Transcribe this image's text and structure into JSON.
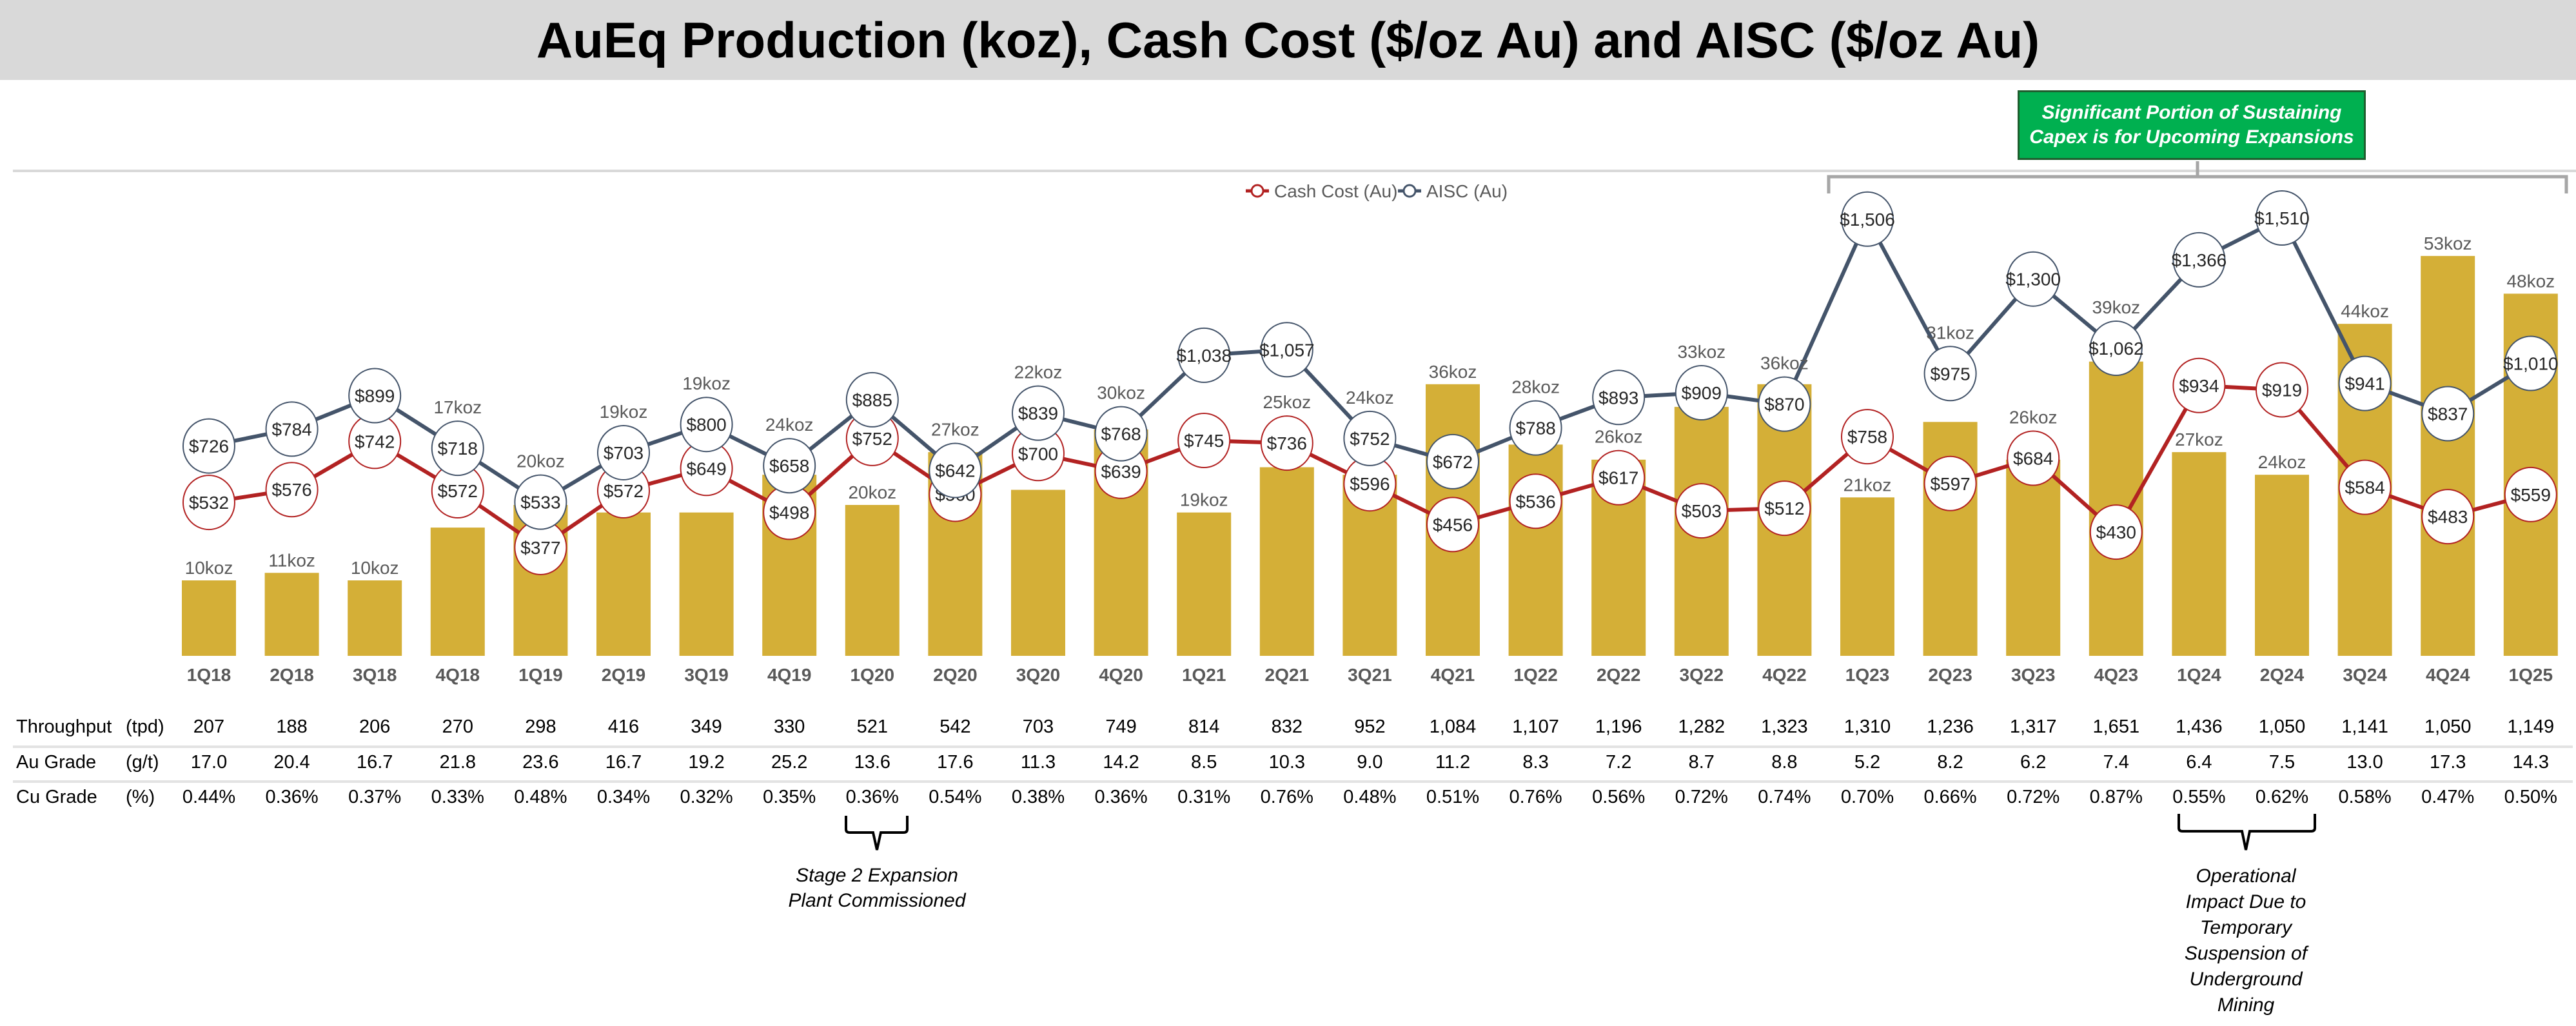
{
  "title": "AuEq Production (koz), Cash Cost ($/oz Au) and AISC ($/oz Au)",
  "callout": {
    "line1": "Significant Portion of Sustaining",
    "line2": "Capex is for Upcoming Expansions"
  },
  "annotations": {
    "stage2": [
      "Stage 2 Expansion",
      "Plant Commissioned"
    ],
    "operational": [
      "Operational",
      "Impact Due to",
      "Temporary",
      "Suspension of",
      "Underground",
      "Mining"
    ]
  },
  "colors": {
    "bar": "#d4af37",
    "cash_cost": "#b22222",
    "aisc": "#44546a",
    "callout": "#00b050",
    "title_bg": "#d9d9d9"
  },
  "chart_data": {
    "type": "bar+line",
    "title": "AuEq Production (koz), Cash Cost ($/oz Au) and AISC ($/oz Au)",
    "legend": {
      "position": "top-center",
      "entries": [
        "Cash Cost (Au)",
        "AISC (Au)"
      ]
    },
    "grid": false,
    "categories": [
      "1Q18",
      "2Q18",
      "3Q18",
      "4Q18",
      "1Q19",
      "2Q19",
      "3Q19",
      "4Q19",
      "1Q20",
      "2Q20",
      "3Q20",
      "4Q20",
      "1Q21",
      "2Q21",
      "3Q21",
      "4Q21",
      "1Q22",
      "2Q22",
      "3Q22",
      "4Q22",
      "1Q23",
      "2Q23",
      "3Q23",
      "4Q23",
      "1Q24",
      "2Q24",
      "3Q24",
      "4Q24",
      "1Q25"
    ],
    "production_koz": [
      10,
      11,
      10,
      17,
      20,
      19,
      19,
      24,
      20,
      27,
      22,
      30,
      19,
      25,
      24,
      36,
      28,
      26,
      33,
      36,
      21,
      31,
      26,
      39,
      27,
      24,
      44,
      53,
      48
    ],
    "series": [
      {
        "name": "Cash Cost (Au)",
        "type": "line",
        "values": [
          532,
          576,
          742,
          572,
          377,
          572,
          649,
          498,
          752,
          560,
          700,
          639,
          745,
          736,
          596,
          456,
          536,
          617,
          503,
          512,
          758,
          597,
          684,
          430,
          934,
          919,
          584,
          483,
          559
        ]
      },
      {
        "name": "AISC (Au)",
        "type": "line",
        "values": [
          726,
          784,
          899,
          718,
          533,
          703,
          800,
          658,
          885,
          642,
          839,
          768,
          1038,
          1057,
          752,
          672,
          788,
          893,
          909,
          870,
          1506,
          975,
          1300,
          1062,
          1366,
          1510,
          941,
          837,
          1010
        ]
      }
    ]
  },
  "data_table": {
    "rows": [
      {
        "label": "Throughput",
        "unit": "(tpd)",
        "values": [
          "207",
          "188",
          "206",
          "270",
          "298",
          "416",
          "349",
          "330",
          "521",
          "542",
          "703",
          "749",
          "814",
          "832",
          "952",
          "1,084",
          "1,107",
          "1,196",
          "1,282",
          "1,323",
          "1,310",
          "1,236",
          "1,317",
          "1,651",
          "1,436",
          "1,050",
          "1,141",
          "1,050",
          "1,149"
        ]
      },
      {
        "label": "Au Grade",
        "unit": "(g/t)",
        "values": [
          "17.0",
          "20.4",
          "16.7",
          "21.8",
          "23.6",
          "16.7",
          "19.2",
          "25.2",
          "13.6",
          "17.6",
          "11.3",
          "14.2",
          "8.5",
          "10.3",
          "9.0",
          "11.2",
          "8.3",
          "7.2",
          "8.7",
          "8.8",
          "5.2",
          "8.2",
          "6.2",
          "7.4",
          "6.4",
          "7.5",
          "13.0",
          "17.3",
          "14.3"
        ]
      },
      {
        "label": "Cu Grade",
        "unit": "(%)",
        "values": [
          "0.44%",
          "0.36%",
          "0.37%",
          "0.33%",
          "0.48%",
          "0.34%",
          "0.32%",
          "0.35%",
          "0.36%",
          "0.54%",
          "0.38%",
          "0.36%",
          "0.31%",
          "0.76%",
          "0.48%",
          "0.51%",
          "0.76%",
          "0.56%",
          "0.72%",
          "0.74%",
          "0.70%",
          "0.66%",
          "0.72%",
          "0.87%",
          "0.55%",
          "0.62%",
          "0.58%",
          "0.47%",
          "0.50%"
        ]
      }
    ]
  }
}
